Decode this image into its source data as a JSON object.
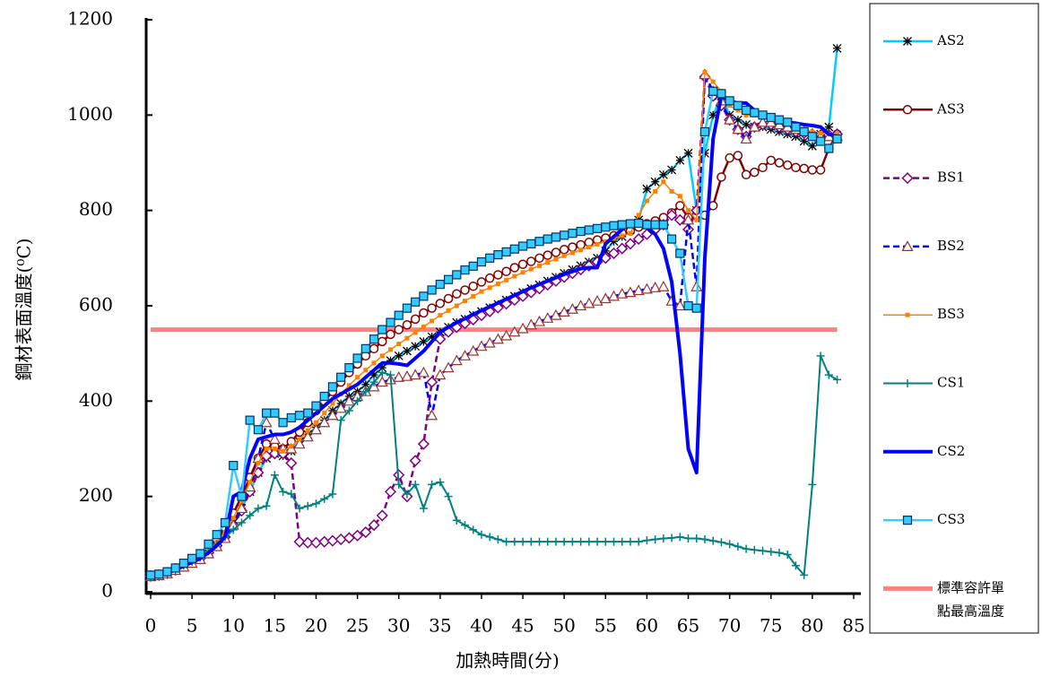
{
  "chart_data": {
    "type": "line",
    "x_label": "加熱時間(分)",
    "y_label": "鋼材表面溫度(⁰C)",
    "x": [
      0,
      1,
      2,
      3,
      4,
      5,
      6,
      7,
      8,
      9,
      10,
      11,
      12,
      13,
      14,
      15,
      16,
      17,
      18,
      19,
      20,
      21,
      22,
      23,
      24,
      25,
      26,
      27,
      28,
      29,
      30,
      31,
      32,
      33,
      34,
      35,
      36,
      37,
      38,
      39,
      40,
      41,
      42,
      43,
      44,
      45,
      46,
      47,
      48,
      49,
      50,
      51,
      52,
      53,
      54,
      55,
      56,
      57,
      58,
      59,
      60,
      61,
      62,
      63,
      64,
      65,
      66,
      67,
      68,
      69,
      70,
      71,
      72,
      73,
      74,
      75,
      76,
      77,
      78,
      79,
      80,
      81,
      82,
      83
    ],
    "series": [
      {
        "name": "AS2",
        "color": "#00ccff",
        "marker": "asterisk",
        "marker_color": "#000000",
        "line_style": "solid",
        "line_width": 2.5,
        "values": [
          35,
          36,
          40,
          48,
          55,
          63,
          72,
          85,
          100,
          120,
          145,
          175,
          210,
          250,
          280,
          290,
          285,
          295,
          315,
          330,
          345,
          360,
          380,
          395,
          410,
          420,
          435,
          455,
          470,
          485,
          495,
          505,
          515,
          525,
          535,
          545,
          555,
          565,
          572,
          580,
          588,
          596,
          603,
          612,
          620,
          628,
          636,
          644,
          652,
          660,
          668,
          676,
          684,
          692,
          700,
          715,
          735,
          745,
          760,
          780,
          845,
          860,
          875,
          885,
          905,
          920,
          800,
          920,
          1000,
          1040,
          1000,
          990,
          980,
          975,
          975,
          970,
          965,
          960,
          955,
          945,
          935,
          960,
          975,
          1140
        ]
      },
      {
        "name": "AS3",
        "color": "#800000",
        "marker": "circle",
        "marker_color": "#800000",
        "line_style": "solid",
        "line_width": 2.5,
        "values": [
          35,
          37,
          42,
          50,
          58,
          68,
          78,
          92,
          110,
          135,
          165,
          200,
          240,
          280,
          310,
          305,
          300,
          315,
          335,
          355,
          380,
          400,
          420,
          440,
          460,
          478,
          495,
          510,
          525,
          540,
          550,
          560,
          572,
          585,
          595,
          605,
          615,
          625,
          633,
          641,
          650,
          658,
          665,
          672,
          680,
          687,
          693,
          700,
          706,
          712,
          718,
          723,
          728,
          733,
          738,
          742,
          747,
          752,
          757,
          765,
          772,
          778,
          785,
          795,
          810,
          785,
          790,
          790,
          810,
          870,
          910,
          915,
          875,
          880,
          890,
          905,
          900,
          895,
          890,
          888,
          885,
          885,
          930,
          960
        ]
      },
      {
        "name": "BS1",
        "color": "#800080",
        "marker": "diamond",
        "marker_color": "#800080",
        "line_style": "dashed",
        "line_width": 2.5,
        "values": [
          33,
          35,
          39,
          46,
          54,
          62,
          70,
          82,
          97,
          115,
          140,
          170,
          210,
          250,
          285,
          290,
          290,
          270,
          105,
          103,
          103,
          105,
          107,
          110,
          113,
          118,
          125,
          140,
          160,
          210,
          245,
          200,
          275,
          310,
          440,
          530,
          545,
          555,
          563,
          571,
          580,
          588,
          596,
          604,
          612,
          620,
          628,
          636,
          644,
          652,
          660,
          668,
          676,
          684,
          692,
          700,
          710,
          720,
          730,
          740,
          750,
          760,
          770,
          790,
          780,
          760,
          800,
          1080,
          1040,
          1020,
          990,
          970,
          955,
          975,
          980,
          980,
          975,
          970,
          965,
          962,
          960,
          958,
          958,
          960
        ]
      },
      {
        "name": "BS2",
        "color": "#0000ff",
        "marker": "triangle",
        "marker_color": "#993333",
        "line_style": "dashed",
        "line_width": 2.5,
        "values": [
          32,
          34,
          38,
          45,
          52,
          60,
          68,
          80,
          95,
          112,
          140,
          175,
          220,
          280,
          355,
          320,
          300,
          300,
          310,
          325,
          340,
          355,
          370,
          385,
          400,
          410,
          420,
          430,
          440,
          445,
          450,
          452,
          455,
          460,
          370,
          455,
          470,
          485,
          495,
          505,
          515,
          522,
          530,
          537,
          545,
          552,
          560,
          567,
          574,
          580,
          587,
          593,
          600,
          605,
          610,
          615,
          620,
          625,
          628,
          632,
          635,
          638,
          640,
          610,
          600,
          780,
          640,
          1085,
          1050,
          1030,
          990,
          970,
          950,
          975,
          985,
          985,
          980,
          975,
          970,
          965,
          960,
          955,
          955,
          955
        ]
      },
      {
        "name": "BS3",
        "color": "#ff8000",
        "marker": "small-square",
        "marker_color": "#ff8000",
        "line_style": "solid",
        "line_width": 1.5,
        "values": [
          34,
          36,
          40,
          47,
          55,
          64,
          73,
          87,
          104,
          125,
          155,
          190,
          230,
          270,
          300,
          300,
          295,
          305,
          320,
          338,
          355,
          375,
          395,
          415,
          433,
          450,
          465,
          480,
          495,
          508,
          520,
          532,
          544,
          556,
          568,
          580,
          590,
          600,
          610,
          620,
          630,
          638,
          646,
          654,
          662,
          670,
          677,
          684,
          691,
          698,
          705,
          711,
          717,
          723,
          729,
          735,
          741,
          747,
          752,
          790,
          820,
          840,
          860,
          840,
          830,
          800,
          780,
          1090,
          1070,
          1050,
          1020,
          1010,
          1000,
          1000,
          995,
          990,
          985,
          980,
          975,
          970,
          965,
          962,
          960,
          960
        ]
      },
      {
        "name": "CS1",
        "color": "#008080",
        "marker": "plus",
        "marker_color": "#008080",
        "line_style": "solid",
        "line_width": 2,
        "values": [
          30,
          33,
          38,
          45,
          55,
          63,
          72,
          85,
          100,
          115,
          130,
          145,
          160,
          175,
          180,
          245,
          210,
          205,
          175,
          180,
          185,
          195,
          205,
          360,
          380,
          400,
          420,
          440,
          460,
          455,
          225,
          205,
          225,
          175,
          225,
          230,
          200,
          150,
          140,
          130,
          120,
          115,
          110,
          105,
          105,
          105,
          105,
          105,
          105,
          105,
          105,
          105,
          105,
          105,
          105,
          105,
          105,
          105,
          105,
          105,
          108,
          110,
          112,
          113,
          115,
          112,
          112,
          110,
          107,
          104,
          100,
          95,
          90,
          88,
          86,
          84,
          82,
          78,
          55,
          35,
          225,
          495,
          455,
          445
        ]
      },
      {
        "name": "CS2",
        "color": "#0000ff",
        "marker": "none",
        "marker_color": "#0000ff",
        "line_style": "solid",
        "line_width": 4,
        "values": [
          33,
          35,
          39,
          46,
          54,
          62,
          70,
          82,
          97,
          115,
          200,
          210,
          280,
          320,
          325,
          330,
          330,
          335,
          345,
          360,
          375,
          390,
          405,
          415,
          425,
          435,
          450,
          465,
          480,
          480,
          478,
          475,
          490,
          505,
          525,
          545,
          555,
          565,
          573,
          582,
          590,
          598,
          606,
          614,
          622,
          630,
          638,
          645,
          652,
          659,
          666,
          672,
          678,
          680,
          680,
          730,
          745,
          760,
          775,
          770,
          765,
          750,
          720,
          650,
          500,
          300,
          250,
          700,
          950,
          1040,
          1030,
          1025,
          1025,
          1010,
          1000,
          995,
          990,
          985,
          983,
          980,
          978,
          975,
          960,
          955
        ]
      },
      {
        "name": "CS3",
        "color": "#33ccff",
        "marker": "square",
        "marker_color": "#003366",
        "line_style": "solid",
        "line_width": 2.5,
        "values": [
          35,
          37,
          42,
          50,
          60,
          70,
          80,
          100,
          120,
          145,
          265,
          200,
          360,
          340,
          375,
          375,
          355,
          365,
          370,
          375,
          390,
          410,
          430,
          450,
          470,
          490,
          510,
          530,
          550,
          565,
          580,
          595,
          608,
          620,
          633,
          645,
          655,
          665,
          675,
          683,
          692,
          700,
          707,
          713,
          719,
          725,
          730,
          735,
          740,
          744,
          748,
          752,
          756,
          759,
          762,
          765,
          768,
          770,
          772,
          773,
          770,
          770,
          770,
          740,
          710,
          600,
          595,
          965,
          1050,
          1045,
          1030,
          1020,
          1010,
          1005,
          1000,
          995,
          990,
          985,
          975,
          965,
          955,
          945,
          930,
          950
        ]
      }
    ],
    "threshold": {
      "name": [
        "標準容許單",
        "點最高溫度"
      ],
      "value": 550,
      "x": [
        0,
        83
      ],
      "color": "#ff8080"
    },
    "xlim": [
      0,
      85
    ],
    "xticks": [
      0,
      5,
      10,
      15,
      20,
      25,
      30,
      35,
      40,
      45,
      50,
      55,
      60,
      65,
      70,
      75,
      80,
      85
    ],
    "ylim": [
      0,
      1200
    ],
    "yticks": [
      0,
      200,
      400,
      600,
      800,
      1000,
      1200
    ],
    "grid": false,
    "legend": "right"
  }
}
